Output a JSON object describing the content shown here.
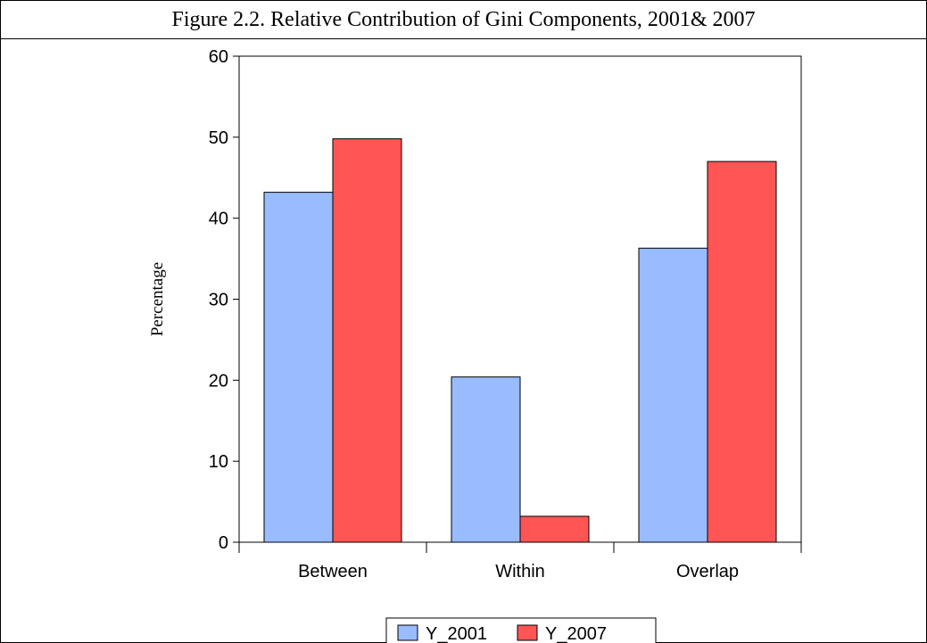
{
  "figure": {
    "title": "Figure 2.2. Relative Contribution of Gini Components, 2001& 2007"
  },
  "chart_data": {
    "type": "bar",
    "title": "Figure 2.2. Relative Contribution of Gini Components, 2001& 2007",
    "categories": [
      "Between",
      "Within",
      "Overlap"
    ],
    "series": [
      {
        "name": "Y_2001",
        "values": [
          43.2,
          20.4,
          36.3
        ],
        "color": "#99bbff"
      },
      {
        "name": "Y_2007",
        "values": [
          49.8,
          3.2,
          47.0
        ],
        "color": "#ff5555"
      }
    ],
    "xlabel": "",
    "ylabel": "Percentage",
    "ylim": [
      0,
      60
    ],
    "yticks": [
      0,
      10,
      20,
      30,
      40,
      50,
      60
    ],
    "grid": false,
    "legend": "bottom-center"
  }
}
